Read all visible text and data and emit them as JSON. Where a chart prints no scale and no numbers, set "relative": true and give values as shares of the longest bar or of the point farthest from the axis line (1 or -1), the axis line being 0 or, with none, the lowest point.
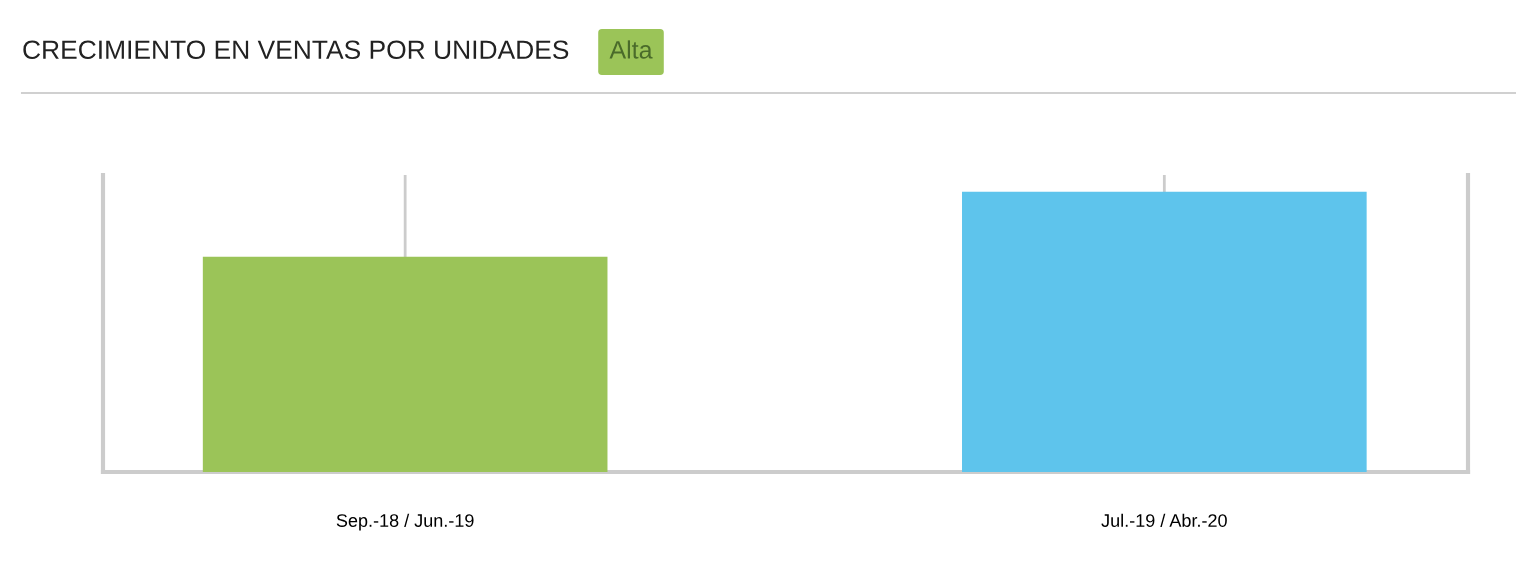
{
  "chart_data": {
    "type": "bar",
    "title": "CRECIMIENTO EN VENTAS POR UNIDADES",
    "subtitle": "Alta",
    "categories": [
      "Sep.-18 / Jun.-19",
      "Jul.-19 / Abr.-20"
    ],
    "values": [
      0.768,
      1
    ],
    "colors": [
      "#9bc458",
      "#5ec4ec"
    ],
    "relative": true,
    "grid": "x",
    "legend": false
  }
}
